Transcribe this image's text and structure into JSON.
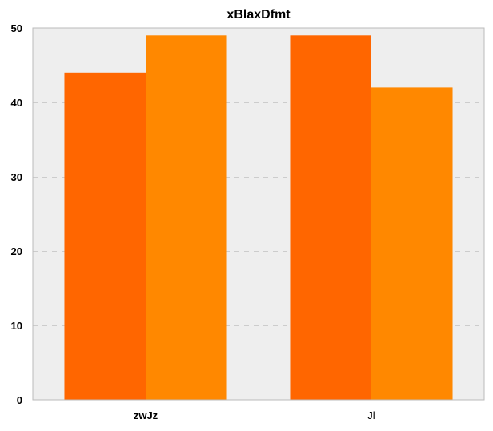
{
  "chart_data": {
    "type": "bar",
    "title": "xBlaxDfmt",
    "xlabel": "",
    "ylabel": "",
    "categories": [
      "zwJz",
      "Jl"
    ],
    "category_bold": [
      true,
      false
    ],
    "series": [
      {
        "values": [
          44,
          49
        ],
        "color": "#ff6600"
      },
      {
        "values": [
          49,
          42
        ],
        "color": "#ff8800"
      }
    ],
    "ylim": [
      0,
      50
    ],
    "yticks": [
      0,
      10,
      20,
      30,
      40,
      50
    ],
    "grid": true,
    "legend": "none",
    "background_color": "#eeeeee",
    "grid_color": "#cccccc"
  }
}
